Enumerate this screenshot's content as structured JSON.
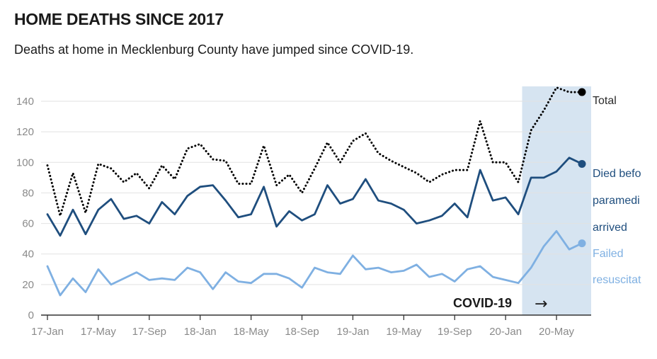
{
  "title": "HOME DEATHS SINCE 2017",
  "subtitle": "Deaths at home in Mecklenburg County have jumped since COVID-19.",
  "chart_data": {
    "type": "line",
    "ylim": [
      0,
      150
    ],
    "y_ticks": [
      0,
      20,
      40,
      60,
      80,
      100,
      120,
      140
    ],
    "x_tick_labels": [
      "17-Jan",
      "17-May",
      "17-Sep",
      "18-Jan",
      "18-May",
      "18-Sep",
      "19-Jan",
      "19-May",
      "19-Sep",
      "20-Jan",
      "20-May"
    ],
    "x_tick_month_index": [
      0,
      4,
      8,
      12,
      16,
      20,
      24,
      28,
      32,
      36,
      40
    ],
    "x_month_range": [
      0,
      42
    ],
    "grid": "horizontal",
    "covid_shade": {
      "start_month": 37.3,
      "end_month": 42.5,
      "label": "COVID-19",
      "arrow": "→"
    },
    "series": [
      {
        "name": "Total",
        "style": "dotted",
        "color": "#000000",
        "end_marker": true,
        "label_lines": [
          "Total"
        ],
        "values": [
          98,
          65,
          93,
          67,
          99,
          96,
          87,
          93,
          83,
          98,
          89,
          109,
          112,
          102,
          101,
          86,
          86,
          111,
          85,
          92,
          80,
          96,
          113,
          100,
          114,
          119,
          106,
          101,
          97,
          93,
          87,
          92,
          95,
          95,
          127,
          100,
          100,
          87,
          121,
          134,
          149,
          146,
          146
        ]
      },
      {
        "name": "Died before paramedics arrived",
        "style": "solid",
        "color": "#1f4e7e",
        "end_marker": true,
        "label_lines": [
          "Died befo",
          "paramedi",
          "arrived"
        ],
        "values": [
          66,
          52,
          69,
          53,
          69,
          76,
          63,
          65,
          60,
          74,
          66,
          78,
          84,
          85,
          75,
          64,
          66,
          84,
          58,
          68,
          62,
          66,
          85,
          73,
          76,
          89,
          75,
          73,
          69,
          60,
          62,
          65,
          73,
          64,
          95,
          75,
          77,
          66,
          90,
          90,
          94,
          103,
          99
        ]
      },
      {
        "name": "Failed resuscitation",
        "style": "solid",
        "color": "#7fb0e2",
        "end_marker": true,
        "label_lines": [
          "Failed",
          "resuscitat"
        ],
        "values": [
          32,
          13,
          24,
          15,
          30,
          20,
          24,
          28,
          23,
          24,
          23,
          31,
          28,
          17,
          28,
          22,
          21,
          27,
          27,
          24,
          18,
          31,
          28,
          27,
          39,
          30,
          31,
          28,
          29,
          33,
          25,
          27,
          22,
          30,
          32,
          25,
          23,
          21,
          31,
          45,
          55,
          43,
          47
        ]
      }
    ]
  }
}
